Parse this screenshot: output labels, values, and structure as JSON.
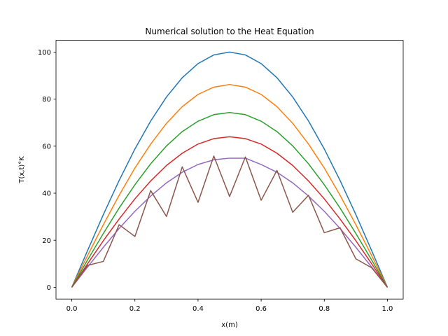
{
  "chart_data": {
    "type": "line",
    "title": "Numerical solution to the Heat Equation",
    "xlabel": "x(m)",
    "ylabel": "T(x,t)°K",
    "xlim": [
      -0.05,
      1.05
    ],
    "ylim": [
      -5,
      105
    ],
    "xticks": [
      0.0,
      0.2,
      0.4,
      0.6,
      0.8,
      1.0
    ],
    "xtick_labels": [
      "0.0",
      "0.2",
      "0.4",
      "0.6",
      "0.8",
      "1.0"
    ],
    "yticks": [
      0,
      20,
      40,
      60,
      80,
      100
    ],
    "ytick_labels": [
      "0",
      "20",
      "40",
      "60",
      "80",
      "100"
    ],
    "grid": false,
    "legend": "none",
    "x": [
      0.0,
      0.05,
      0.1,
      0.15,
      0.2,
      0.25,
      0.3,
      0.35,
      0.4,
      0.45,
      0.5,
      0.55,
      0.6,
      0.65,
      0.7,
      0.75,
      0.8,
      0.85,
      0.9,
      0.95,
      1.0
    ],
    "series": [
      {
        "color": "#1f77b4",
        "values": [
          0,
          15.6,
          30.9,
          45.4,
          58.8,
          70.7,
          80.9,
          89.1,
          95.1,
          98.8,
          100,
          98.8,
          95.1,
          89.1,
          80.9,
          70.7,
          58.8,
          45.4,
          30.9,
          15.6,
          0
        ]
      },
      {
        "color": "#ff7f0e",
        "values": [
          0,
          13.5,
          26.6,
          39.1,
          50.7,
          60.9,
          69.7,
          76.8,
          82.0,
          85.1,
          86.2,
          85.1,
          82.0,
          76.8,
          69.7,
          60.9,
          50.7,
          39.1,
          26.6,
          13.5,
          0
        ]
      },
      {
        "color": "#2ca02c",
        "values": [
          0,
          11.6,
          22.9,
          33.7,
          43.6,
          52.5,
          60.1,
          66.2,
          70.6,
          73.4,
          74.3,
          73.4,
          70.6,
          66.2,
          60.1,
          52.5,
          43.6,
          33.7,
          22.9,
          11.6,
          0
        ]
      },
      {
        "color": "#d62728",
        "values": [
          0,
          10.0,
          19.8,
          29.0,
          37.6,
          45.2,
          51.8,
          57.0,
          60.9,
          63.2,
          64.0,
          63.2,
          60.9,
          57.0,
          51.8,
          45.2,
          37.6,
          29.0,
          19.8,
          10.0,
          0
        ]
      },
      {
        "color": "#9467bd",
        "values": [
          0,
          8.6,
          17.0,
          25.0,
          32.3,
          38.8,
          44.4,
          48.9,
          52.2,
          54.2,
          54.9,
          54.9,
          52.2,
          48.9,
          44.4,
          38.8,
          32.3,
          25.0,
          17.0,
          8.6,
          0
        ]
      },
      {
        "color": "#8c564b",
        "values": [
          0,
          9.3,
          11.0,
          26.6,
          21.6,
          41.1,
          30.1,
          51.2,
          36.1,
          55.8,
          38.6,
          55.4,
          37.0,
          49.7,
          31.9,
          39.1,
          23.2,
          25.3,
          12.1,
          8.3,
          0
        ]
      }
    ]
  }
}
